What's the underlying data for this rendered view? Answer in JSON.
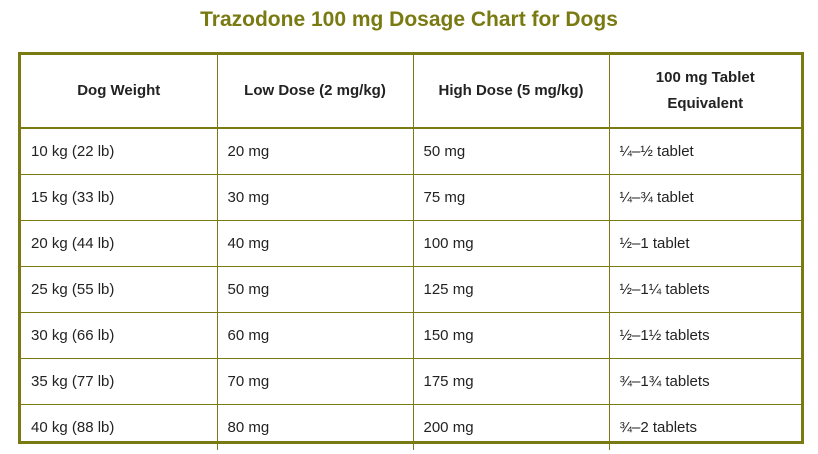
{
  "title": "Trazodone 100 mg Dosage Chart for Dogs",
  "colors": {
    "accent": "#7a7a12",
    "text": "#222222",
    "background": "#ffffff"
  },
  "table": {
    "headers": [
      "Dog Weight",
      "Low Dose (2 mg/kg)",
      "High Dose (5 mg/kg)",
      "100 mg Tablet Equivalent"
    ],
    "rows": [
      [
        "10 kg (22 lb)",
        "20 mg",
        "50 mg",
        "¼–½ tablet"
      ],
      [
        "15 kg (33 lb)",
        "30 mg",
        "75 mg",
        "¼–¾ tablet"
      ],
      [
        "20 kg (44 lb)",
        "40 mg",
        "100 mg",
        "½–1 tablet"
      ],
      [
        "25 kg (55 lb)",
        "50 mg",
        "125 mg",
        "½–1¼ tablets"
      ],
      [
        "30 kg (66 lb)",
        "60 mg",
        "150 mg",
        "½–1½ tablets"
      ],
      [
        "35 kg (77 lb)",
        "70 mg",
        "175 mg",
        "¾–1¾ tablets"
      ],
      [
        "40 kg (88 lb)",
        "80 mg",
        "200 mg",
        "¾–2 tablets"
      ]
    ]
  }
}
